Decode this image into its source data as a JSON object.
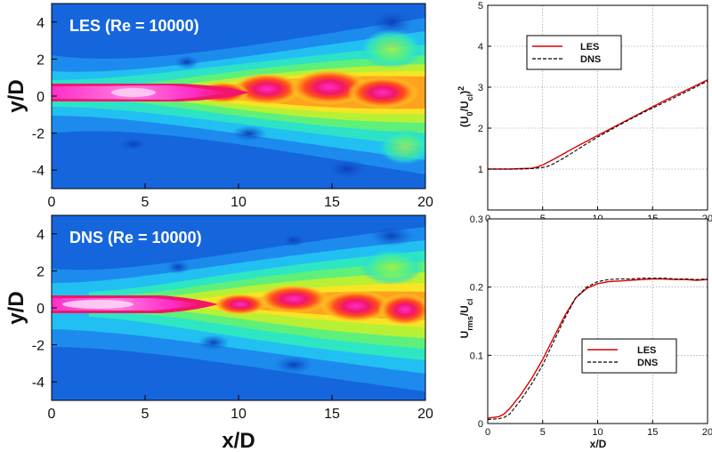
{
  "chart_data": [
    {
      "type": "heatmap",
      "title": "LES (Re = 10000)",
      "xlabel": "",
      "ylabel": "y/D",
      "xlim": [
        0,
        20
      ],
      "ylim": [
        -5,
        5
      ],
      "xticks": [
        "0",
        "5",
        "10",
        "15",
        "20"
      ],
      "yticks": [
        "4",
        "2",
        "0",
        "-2",
        "-4"
      ],
      "colormap": [
        "#1460d6",
        "#1e8ff0",
        "#23c5f2",
        "#2fe6c2",
        "#5ef07a",
        "#b8f036",
        "#f7e424",
        "#ffa21e",
        "#ff4b1c",
        "#f0166a",
        "#ff2ec8",
        "#ffb3f2"
      ],
      "field": "jet centreline core along y/D = 0, half-width 0.5 near nozzle spreading downstream"
    },
    {
      "type": "heatmap",
      "title": "DNS (Re = 10000)",
      "xlabel": "x/D",
      "ylabel": "y/D",
      "xlim": [
        0,
        20
      ],
      "ylim": [
        -5,
        5
      ],
      "xticks": [
        "0",
        "5",
        "10",
        "15",
        "20"
      ],
      "yticks": [
        "4",
        "2",
        "0",
        "-2",
        "-4"
      ]
    },
    {
      "type": "line",
      "xlabel": "",
      "ylabel": "(U0/Ucl)^2",
      "xlim": [
        0,
        20
      ],
      "ylim": [
        0,
        5
      ],
      "xticks": [
        "0",
        "5",
        "10",
        "15",
        "20"
      ],
      "yticks": [
        "1",
        "2",
        "3",
        "4",
        "5"
      ],
      "grid": true,
      "legend": "upper-left",
      "series": [
        {
          "name": "LES",
          "color": "#e00000",
          "dash": "solid",
          "x": [
            0,
            2,
            3,
            4,
            4.5,
            5,
            6,
            7,
            8,
            9,
            10,
            12,
            14,
            16,
            18,
            20
          ],
          "y": [
            1.0,
            1.0,
            1.01,
            1.02,
            1.05,
            1.1,
            1.24,
            1.39,
            1.54,
            1.68,
            1.82,
            2.1,
            2.38,
            2.66,
            2.92,
            3.18
          ]
        },
        {
          "name": "DNS",
          "color": "#000000",
          "dash": "dashed",
          "x": [
            0,
            2,
            3,
            4,
            5,
            5.5,
            6,
            7,
            8,
            9,
            10,
            12,
            14,
            16,
            18,
            20
          ],
          "y": [
            1.0,
            1.0,
            1.0,
            1.01,
            1.04,
            1.07,
            1.13,
            1.28,
            1.45,
            1.62,
            1.78,
            2.08,
            2.36,
            2.62,
            2.88,
            3.15
          ]
        }
      ]
    },
    {
      "type": "line",
      "xlabel": "x/D",
      "ylabel": "Urms/Ucl",
      "xlim": [
        0,
        20
      ],
      "ylim": [
        0,
        0.3
      ],
      "xticks": [
        "0",
        "5",
        "10",
        "15",
        "20"
      ],
      "yticks": [
        "0",
        "0.1",
        "0.2",
        "0.3"
      ],
      "grid": true,
      "legend": "lower-right",
      "series": [
        {
          "name": "LES",
          "color": "#e00000",
          "dash": "solid",
          "x": [
            0,
            1,
            1.5,
            2,
            3,
            4,
            5,
            6,
            7,
            8,
            9,
            10,
            11,
            12,
            13,
            14,
            15,
            16,
            17,
            18,
            19,
            20
          ],
          "y": [
            0.008,
            0.01,
            0.014,
            0.022,
            0.042,
            0.066,
            0.094,
            0.126,
            0.158,
            0.184,
            0.198,
            0.205,
            0.208,
            0.209,
            0.21,
            0.211,
            0.212,
            0.212,
            0.211,
            0.211,
            0.21,
            0.211
          ]
        },
        {
          "name": "DNS",
          "color": "#000000",
          "dash": "dashed",
          "x": [
            0,
            1,
            1.5,
            2,
            3,
            4,
            5,
            6,
            7,
            8,
            9,
            10,
            11,
            12,
            13,
            14,
            15,
            16,
            17,
            18,
            19,
            20
          ],
          "y": [
            0.006,
            0.007,
            0.009,
            0.014,
            0.034,
            0.058,
            0.086,
            0.12,
            0.154,
            0.184,
            0.2,
            0.208,
            0.211,
            0.212,
            0.212,
            0.213,
            0.213,
            0.213,
            0.212,
            0.212,
            0.211,
            0.212
          ]
        }
      ]
    }
  ],
  "labels": {
    "les_title": "LES (Re = 10000)",
    "dns_title": "DNS (Re = 10000)",
    "ylabel_yD": "y/D",
    "xlabel_xD": "x/D",
    "ylabel_u0": "(U",
    "ylabel_u0_sub": "0",
    "ylabel_u0_mid": "/U",
    "ylabel_u0_sub2": "cl",
    "ylabel_u0_end": ")",
    "ylabel_u0_sup": "2",
    "ylabel_urms": "U",
    "ylabel_urms_sub": "rms",
    "ylabel_urms_mid": "/U",
    "ylabel_urms_sub2": "cl",
    "xlabel_small": "x/D",
    "legend_les": "LES",
    "legend_dns": "DNS"
  }
}
